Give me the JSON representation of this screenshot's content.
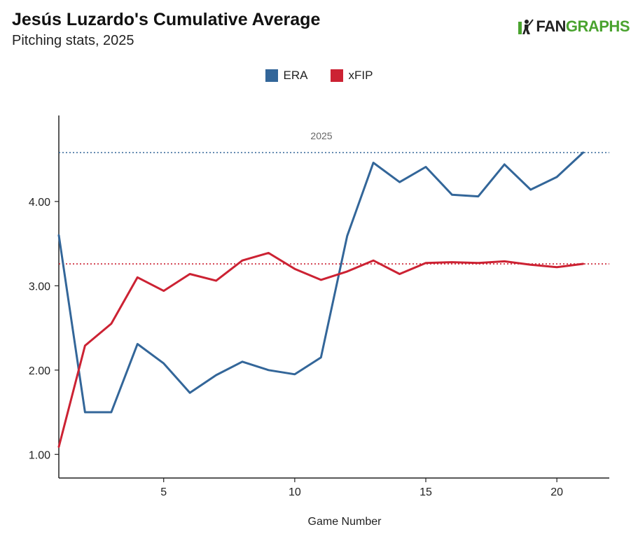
{
  "header": {
    "title": "Jesús Luzardo's Cumulative Average",
    "subtitle": "Pitching stats, 2025"
  },
  "logo": {
    "part1": "FAN",
    "part2": "GRAPHS",
    "icon": "batter-icon",
    "accent": "#4aa32f"
  },
  "legend": [
    {
      "name": "ERA",
      "color": "#336699"
    },
    {
      "name": "xFIP",
      "color": "#cc2233"
    }
  ],
  "chart_data": {
    "type": "line",
    "title": "Jesús Luzardo's Cumulative Average",
    "subtitle": "Pitching stats, 2025",
    "xlabel": "Game Number",
    "ylabel": "",
    "xlim": [
      1,
      22
    ],
    "ylim": [
      0.72,
      5.02
    ],
    "xticks": [
      5,
      10,
      15,
      20
    ],
    "yticks": [
      1.0,
      2.0,
      3.0,
      4.0
    ],
    "ytick_labels": [
      "1.00",
      "2.00",
      "3.00",
      "4.00"
    ],
    "grid": false,
    "legend_position": "top-center",
    "reference_label": "2025",
    "reference_lines": [
      {
        "series": "ERA",
        "value": 4.58,
        "color": "#336699",
        "style": "dotted"
      },
      {
        "series": "xFIP",
        "value": 3.26,
        "color": "#cc2233",
        "style": "dotted"
      }
    ],
    "series": [
      {
        "name": "ERA",
        "color": "#336699",
        "x": [
          1,
          2,
          3,
          4,
          5,
          6,
          7,
          8,
          9,
          10,
          11,
          12,
          13,
          14,
          15,
          16,
          17,
          18,
          19,
          20,
          21
        ],
        "values": [
          3.6,
          1.5,
          1.5,
          2.31,
          2.08,
          1.73,
          1.94,
          2.1,
          2.0,
          1.95,
          2.15,
          3.59,
          4.46,
          4.23,
          4.41,
          4.08,
          4.06,
          4.44,
          4.14,
          4.29,
          4.58
        ]
      },
      {
        "name": "xFIP",
        "color": "#cc2233",
        "x": [
          1,
          2,
          3,
          4,
          5,
          6,
          7,
          8,
          9,
          10,
          11,
          12,
          13,
          14,
          15,
          16,
          17,
          18,
          19,
          20,
          21
        ],
        "values": [
          1.09,
          2.29,
          2.55,
          3.1,
          2.94,
          3.14,
          3.06,
          3.3,
          3.39,
          3.2,
          3.07,
          3.17,
          3.3,
          3.14,
          3.27,
          3.28,
          3.27,
          3.29,
          3.25,
          3.22,
          3.26
        ]
      }
    ]
  }
}
